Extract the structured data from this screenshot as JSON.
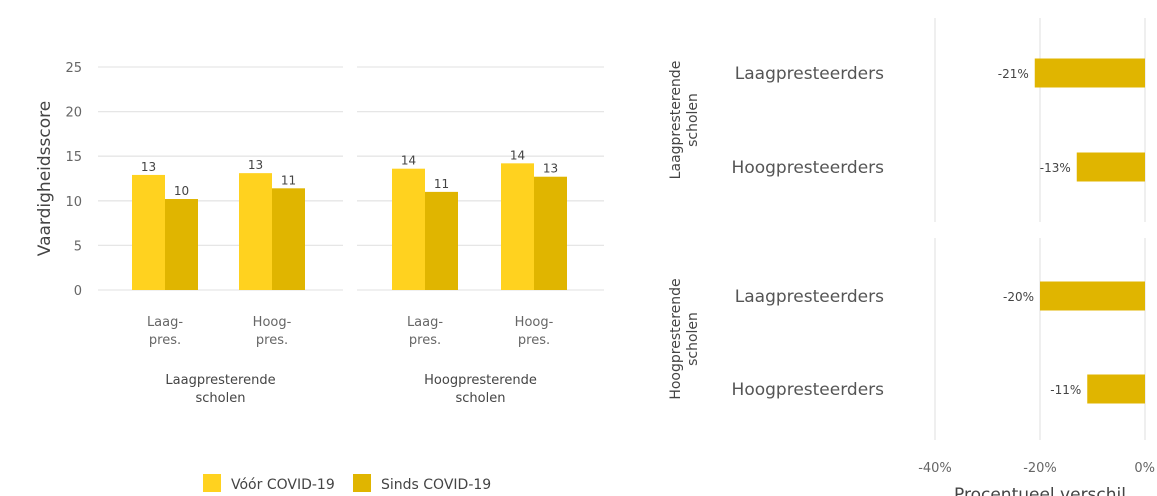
{
  "colors": {
    "before": "#FFD21F",
    "since": "#E0B500",
    "diff": "#E0B500",
    "grid": "#E6E6E6"
  },
  "chart_data": [
    {
      "type": "bar",
      "ylabel": "Vaardigheidsscore",
      "ylim": [
        0,
        25
      ],
      "yticks": [
        "0",
        "5",
        "10",
        "15",
        "20",
        "25"
      ],
      "grid": true,
      "legend_position": "bottom",
      "series": [
        {
          "name": "Vóór COVID-19"
        },
        {
          "name": "Sinds COVID-19"
        }
      ],
      "panels": [
        {
          "title": [
            "Laagpresterende",
            "scholen"
          ],
          "groups": [
            {
              "label": [
                "Laag-",
                "pres."
              ],
              "values": [
                12.9,
                10.2
              ],
              "labels": [
                "13",
                "10"
              ]
            },
            {
              "label": [
                "Hoog-",
                "pres."
              ],
              "values": [
                13.1,
                11.4
              ],
              "labels": [
                "13",
                "11"
              ]
            }
          ]
        },
        {
          "title": [
            "Hoogpresterende",
            "scholen"
          ],
          "groups": [
            {
              "label": [
                "Laag-",
                "pres."
              ],
              "values": [
                13.6,
                11.0
              ],
              "labels": [
                "14",
                "11"
              ]
            },
            {
              "label": [
                "Hoog-",
                "pres."
              ],
              "values": [
                14.2,
                12.7
              ],
              "labels": [
                "14",
                "13"
              ]
            }
          ]
        }
      ]
    },
    {
      "type": "bar",
      "orientation": "horizontal",
      "xlabel": "Procentueel verschil",
      "xlim": [
        -40,
        0
      ],
      "xticks": [
        "-40%",
        "-20%",
        "0%"
      ],
      "grid": true,
      "panels": [
        {
          "strip": [
            "Laagpresterende",
            "scholen"
          ],
          "rows": [
            {
              "label": "Laagpresteerders",
              "value": -21,
              "text": "-21%"
            },
            {
              "label": "Hoogpresteerders",
              "value": -13,
              "text": "-13%"
            }
          ]
        },
        {
          "strip": [
            "Hoogpresterende",
            "scholen"
          ],
          "rows": [
            {
              "label": "Laagpresteerders",
              "value": -20,
              "text": "-20%"
            },
            {
              "label": "Hoogpresteerders",
              "value": -11,
              "text": "-11%"
            }
          ]
        }
      ]
    }
  ]
}
